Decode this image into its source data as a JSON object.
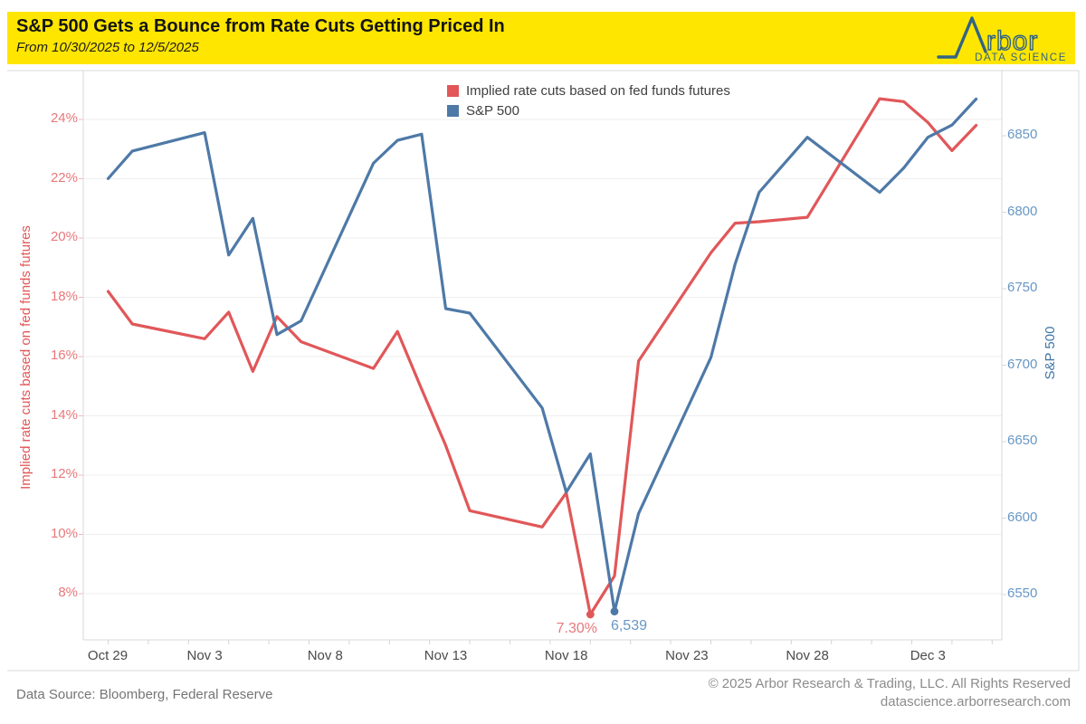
{
  "header": {
    "title": "S&P 500 Gets a Bounce from Rate Cuts Getting Priced In",
    "subtitle": "From 10/30/2025 to 12/5/2025"
  },
  "logo": {
    "wordmark_tail": "rbor",
    "tagline": "DATA SCIENCE"
  },
  "legend": {
    "items": [
      {
        "label": "Implied rate cuts based on fed funds futures",
        "color": "#e15759"
      },
      {
        "label": "S&P 500",
        "color": "#4e79a7"
      }
    ]
  },
  "footer": {
    "source": "Data Source: Bloomberg, Federal Reserve",
    "copyright": "© 2025 Arbor Research & Trading, LLC. All Rights Reserved",
    "website": "datascience.arborresearch.com"
  },
  "colors": {
    "header_yellow": "#ffe600",
    "rate_cuts_red": "#e15759",
    "sp500_blue": "#4e79a7",
    "logo_blue": "#336483",
    "grid": "#eeeeee",
    "axis_line": "#d9d9d9",
    "red_label": "#e8787b",
    "blue_label": "#6897c5",
    "text_gray": "#757575",
    "footer_gray": "#8c8c8c"
  },
  "chart_data": {
    "type": "line",
    "title": "S&P 500 Gets a Bounce from Rate Cuts Getting Priced In",
    "x_start": "2025-10-29",
    "x_ticks": [
      {
        "label": "Oct 29",
        "date": "2025-10-29"
      },
      {
        "label": "Nov 3",
        "date": "2025-11-03"
      },
      {
        "label": "Nov 8",
        "date": "2025-11-08"
      },
      {
        "label": "Nov 13",
        "date": "2025-11-13"
      },
      {
        "label": "Nov 18",
        "date": "2025-11-18"
      },
      {
        "label": "Nov 23",
        "date": "2025-11-23"
      },
      {
        "label": "Nov 28",
        "date": "2025-11-28"
      },
      {
        "label": "Dec 3",
        "date": "2025-12-03"
      }
    ],
    "left_axis": {
      "title": "Implied rate cuts based on fed funds futures",
      "min": 8,
      "max": 24,
      "step": 2,
      "tick_labels": [
        "24%",
        "22%",
        "20%",
        "18%",
        "16%",
        "14%",
        "12%",
        "10%",
        "8%"
      ]
    },
    "right_axis": {
      "title": "S&P 500",
      "min": 6550,
      "max": 6850,
      "step": 50,
      "tick_labels": [
        "6850",
        "6800",
        "6750",
        "6700",
        "6650",
        "6600",
        "6550"
      ]
    },
    "grid": "horizontal-left-axis",
    "legend_position": "top-center",
    "series": [
      {
        "name": "Implied rate cuts based on fed funds futures",
        "axis": "left",
        "color": "#e15759",
        "unit": "%",
        "points": [
          {
            "date": "2025-10-30",
            "value": 18.2
          },
          {
            "date": "2025-10-31",
            "value": 17.1
          },
          {
            "date": "2025-11-03",
            "value": 16.6
          },
          {
            "date": "2025-11-04",
            "value": 17.5
          },
          {
            "date": "2025-11-05",
            "value": 15.5
          },
          {
            "date": "2025-11-06",
            "value": 17.35
          },
          {
            "date": "2025-11-07",
            "value": 16.5
          },
          {
            "date": "2025-11-10",
            "value": 15.6
          },
          {
            "date": "2025-11-11",
            "value": 16.85
          },
          {
            "date": "2025-11-12",
            "value": 14.9
          },
          {
            "date": "2025-11-13",
            "value": 13.0
          },
          {
            "date": "2025-11-14",
            "value": 10.8
          },
          {
            "date": "2025-11-17",
            "value": 10.25
          },
          {
            "date": "2025-11-18",
            "value": 11.4
          },
          {
            "date": "2025-11-19",
            "value": 7.3
          },
          {
            "date": "2025-11-20",
            "value": 8.6
          },
          {
            "date": "2025-11-21",
            "value": 15.85
          },
          {
            "date": "2025-11-24",
            "value": 19.5
          },
          {
            "date": "2025-11-25",
            "value": 20.5
          },
          {
            "date": "2025-11-26",
            "value": 20.55
          },
          {
            "date": "2025-11-28",
            "value": 20.7
          },
          {
            "date": "2025-12-01",
            "value": 24.7
          },
          {
            "date": "2025-12-02",
            "value": 24.6
          },
          {
            "date": "2025-12-03",
            "value": 23.9
          },
          {
            "date": "2025-12-04",
            "value": 22.95
          },
          {
            "date": "2025-12-05",
            "value": 23.8
          }
        ]
      },
      {
        "name": "S&P 500",
        "axis": "right",
        "color": "#4e79a7",
        "points": [
          {
            "date": "2025-10-30",
            "value": 6822
          },
          {
            "date": "2025-10-31",
            "value": 6840
          },
          {
            "date": "2025-11-03",
            "value": 6852
          },
          {
            "date": "2025-11-04",
            "value": 6772
          },
          {
            "date": "2025-11-05",
            "value": 6796
          },
          {
            "date": "2025-11-06",
            "value": 6720
          },
          {
            "date": "2025-11-07",
            "value": 6729
          },
          {
            "date": "2025-11-10",
            "value": 6832
          },
          {
            "date": "2025-11-11",
            "value": 6847
          },
          {
            "date": "2025-11-12",
            "value": 6851
          },
          {
            "date": "2025-11-13",
            "value": 6737
          },
          {
            "date": "2025-11-14",
            "value": 6734
          },
          {
            "date": "2025-11-17",
            "value": 6672
          },
          {
            "date": "2025-11-18",
            "value": 6617
          },
          {
            "date": "2025-11-19",
            "value": 6642
          },
          {
            "date": "2025-11-20",
            "value": 6539
          },
          {
            "date": "2025-11-21",
            "value": 6603
          },
          {
            "date": "2025-11-24",
            "value": 6705
          },
          {
            "date": "2025-11-25",
            "value": 6766
          },
          {
            "date": "2025-11-26",
            "value": 6813
          },
          {
            "date": "2025-11-28",
            "value": 6849
          },
          {
            "date": "2025-12-01",
            "value": 6813
          },
          {
            "date": "2025-12-02",
            "value": 6829
          },
          {
            "date": "2025-12-03",
            "value": 6849
          },
          {
            "date": "2025-12-04",
            "value": 6857
          },
          {
            "date": "2025-12-05",
            "value": 6874
          }
        ]
      }
    ],
    "annotations": [
      {
        "series": 0,
        "date": "2025-11-19",
        "value": 7.3,
        "text": "7.30%"
      },
      {
        "series": 1,
        "date": "2025-11-20",
        "value": 6539,
        "text": "6,539"
      }
    ]
  }
}
